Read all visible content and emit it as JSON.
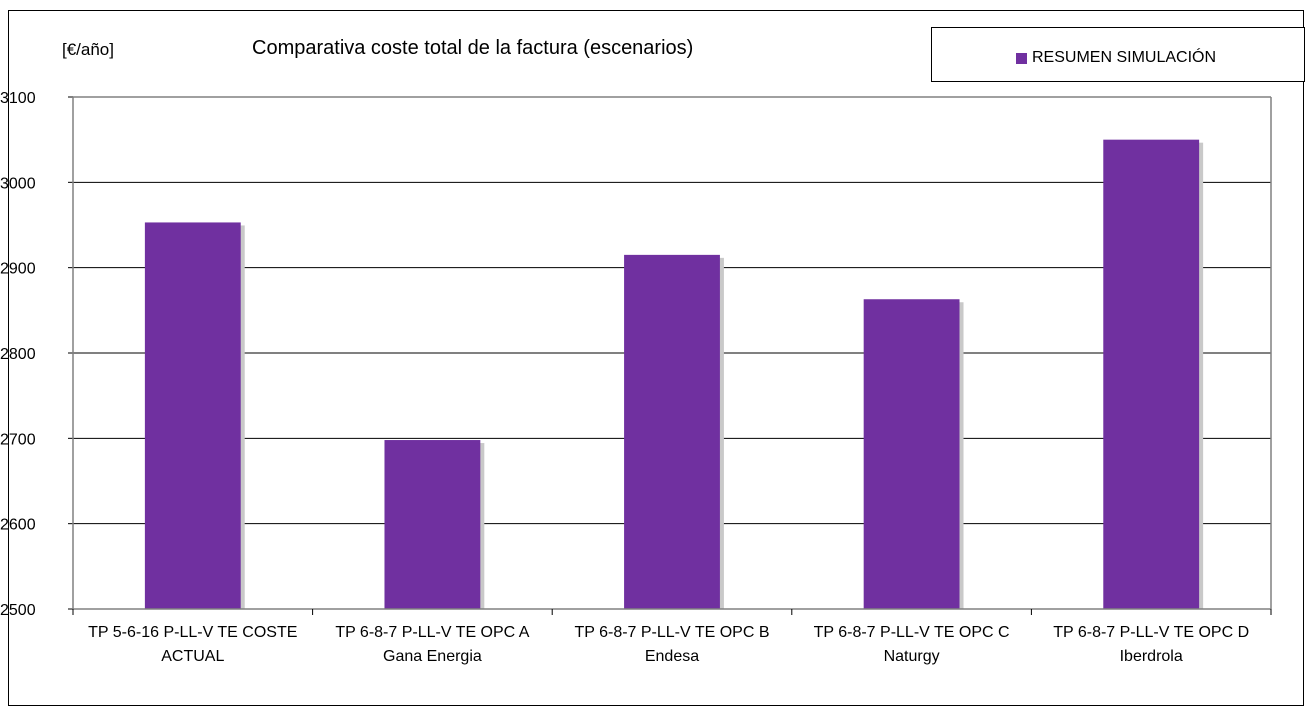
{
  "chart_data": {
    "type": "bar",
    "title": "Comparativa coste total de la factura (escenarios)",
    "ylabel": "[€/año]",
    "xlabel": "",
    "ylim": [
      2500,
      3100
    ],
    "yticks": [
      2500,
      2600,
      2700,
      2800,
      2900,
      3000,
      3100
    ],
    "grid": true,
    "legend_position": "top-right",
    "categories": [
      [
        "TP 5-6-16 P-LL-V TE COSTE",
        "ACTUAL"
      ],
      [
        "TP 6-8-7 P-LL-V TE OPC A",
        "Gana Energia"
      ],
      [
        "TP 6-8-7 P-LL-V TE OPC B",
        "Endesa"
      ],
      [
        "TP 6-8-7 P-LL-V TE OPC C",
        "Naturgy"
      ],
      [
        "TP 6-8-7 P-LL-V TE OPC D",
        "Iberdrola"
      ]
    ],
    "series": [
      {
        "name": "RESUMEN SIMULACIÓN",
        "color": "#7030A0",
        "values": [
          2953,
          2698,
          2915,
          2863,
          3050
        ]
      }
    ]
  }
}
